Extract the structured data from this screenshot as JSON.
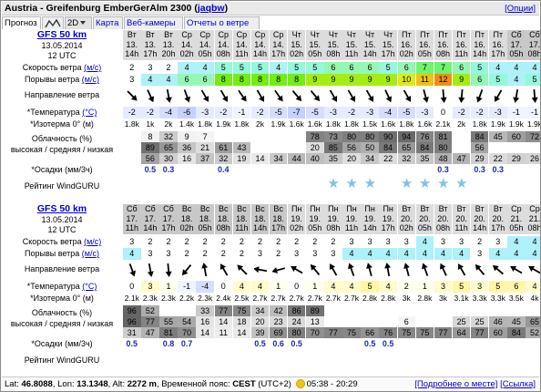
{
  "header": {
    "title": "Austria - Greifenburg EmberGerAlm 2300",
    "user": "jaqbw",
    "options": "[Опции]"
  },
  "tabs": [
    {
      "label": "Прогноз",
      "state": "active"
    },
    {
      "label": "2D",
      "state": "sel"
    },
    {
      "label": "Карта",
      "state": "link"
    },
    {
      "label": "Веб-камеры",
      "state": "link"
    },
    {
      "label": "Отчеты о ветре",
      "state": "link"
    }
  ],
  "labels": {
    "wind_speed": "Скорость ветра",
    "wind_gust": "Порывы ветра",
    "unit_ms": "(м/с)",
    "wind_dir": "Направление ветра",
    "temperature": "*Температура",
    "unit_c": "(°C)",
    "isotherm": "*Изотерма 0° (м)",
    "clouds": "Облачность (%)",
    "clouds_levels": "высокая / средняя / низкая",
    "precip": "*Осадки (мм/3ч)",
    "rating": "Рейтинг WindGURU"
  },
  "colors": {
    "header_bg": "#e9e9e9",
    "day_bg": "#d2d2d2",
    "link": "#0000cc",
    "star": "#7ec4e6"
  },
  "forecasts": [
    {
      "model": "GFS 50 km",
      "date": "13.05.2014",
      "run": "12 UTC",
      "cols": [
        {
          "day": "Вт",
          "dd": "13.",
          "hh": "14h",
          "ws": "2",
          "wg": "3",
          "dir": 135,
          "temp": "-2",
          "iso": "1.8k",
          "ch": "",
          "cm": "",
          "cl": "",
          "pr": "",
          "star": false
        },
        {
          "day": "Вт",
          "dd": "13.",
          "hh": "17h",
          "ws": "3",
          "wg": "4",
          "dir": 155,
          "temp": "-2",
          "iso": "1k",
          "ch": "8",
          "cm": "89",
          "cl": "56",
          "pr": "0.5",
          "star": false
        },
        {
          "day": "Вт",
          "dd": "13.",
          "hh": "20h",
          "ws": "2",
          "wg": "4",
          "dir": 170,
          "temp": "-4",
          "iso": "2k",
          "ch": "32",
          "cm": "65",
          "cl": "30",
          "pr": "0.3",
          "star": false
        },
        {
          "day": "Ср",
          "dd": "14.",
          "hh": "02h",
          "ws": "4",
          "wg": "6",
          "dir": 160,
          "temp": "-6",
          "iso": "1.4k",
          "ch": "9",
          "cm": "36",
          "cl": "16",
          "pr": "",
          "star": false
        },
        {
          "day": "Ср",
          "dd": "14.",
          "hh": "05h",
          "ws": "4",
          "wg": "6",
          "dir": 150,
          "temp": "-3",
          "iso": "1.8k",
          "ch": "7",
          "cm": "21",
          "cl": "37",
          "pr": "",
          "star": false
        },
        {
          "day": "Ср",
          "dd": "14.",
          "hh": "08h",
          "ws": "5",
          "wg": "8",
          "dir": 150,
          "temp": "-2",
          "iso": "1.9k",
          "ch": "",
          "cm": "61",
          "cl": "32",
          "pr": "0.4",
          "star": false
        },
        {
          "day": "Ср",
          "dd": "14.",
          "hh": "11h",
          "ws": "5",
          "wg": "8",
          "dir": 145,
          "temp": "-1",
          "iso": "1.8k",
          "ch": "",
          "cm": "43",
          "cl": "19",
          "pr": "",
          "star": false
        },
        {
          "day": "Ср",
          "dd": "14.",
          "hh": "14h",
          "ws": "5",
          "wg": "8",
          "dir": 150,
          "temp": "-2",
          "iso": "2k",
          "ch": "",
          "cm": "",
          "cl": "14",
          "pr": "",
          "star": false
        },
        {
          "day": "Ср",
          "dd": "14.",
          "hh": "17h",
          "ws": "4",
          "wg": "8",
          "dir": 145,
          "temp": "-5",
          "iso": "1.9k",
          "ch": "",
          "cm": "",
          "cl": "34",
          "pr": "",
          "star": false
        },
        {
          "day": "Чт",
          "dd": "15.",
          "hh": "02h",
          "ws": "5",
          "wg": "8",
          "dir": 140,
          "temp": "-7",
          "iso": "1.6k",
          "ch": "",
          "cm": "",
          "cl": "44",
          "pr": "",
          "star": false
        },
        {
          "day": "Чт",
          "dd": "15.",
          "hh": "05h",
          "ws": "5",
          "wg": "9",
          "dir": 140,
          "temp": "-5",
          "iso": "1.6k",
          "ch": "78",
          "cm": "20",
          "cl": "40",
          "pr": "",
          "star": false
        },
        {
          "day": "Чт",
          "dd": "15.",
          "hh": "08h",
          "ws": "6",
          "wg": "9",
          "dir": 150,
          "temp": "-3",
          "iso": "1.8k",
          "ch": "73",
          "cm": "85",
          "cl": "35",
          "pr": "",
          "star": true
        },
        {
          "day": "Чт",
          "dd": "15.",
          "hh": "11h",
          "ws": "6",
          "wg": "9",
          "dir": 150,
          "temp": "-2",
          "iso": "1.8k",
          "ch": "80",
          "cm": "56",
          "cl": "20",
          "pr": "",
          "star": true
        },
        {
          "day": "Чт",
          "dd": "15.",
          "hh": "14h",
          "ws": "6",
          "wg": "9",
          "dir": 150,
          "temp": "-3",
          "iso": "1.5k",
          "ch": "80",
          "cm": "50",
          "cl": "34",
          "pr": "",
          "star": true
        },
        {
          "day": "Чт",
          "dd": "15.",
          "hh": "17h",
          "ws": "5",
          "wg": "9",
          "dir": 155,
          "temp": "-4",
          "iso": "1.6k",
          "ch": "90",
          "cm": "84",
          "cl": "22",
          "pr": "",
          "star": false
        },
        {
          "day": "Пт",
          "dd": "16.",
          "hh": "02h",
          "ws": "6",
          "wg": "10",
          "dir": 150,
          "temp": "-5",
          "iso": "1.8k",
          "ch": "94",
          "cm": "65",
          "cl": "32",
          "pr": "",
          "star": true
        },
        {
          "day": "Пт",
          "dd": "16.",
          "hh": "05h",
          "ws": "7",
          "wg": "11",
          "dir": 165,
          "temp": "-3",
          "iso": "1.6k",
          "ch": "76",
          "cm": "84",
          "cl": "35",
          "pr": "",
          "star": true
        },
        {
          "day": "Пт",
          "dd": "16.",
          "hh": "08h",
          "ws": "7",
          "wg": "12",
          "dir": 175,
          "temp": "0",
          "iso": "2.1k",
          "ch": "81",
          "cm": "80",
          "cl": "48",
          "pr": "0.3",
          "star": true
        },
        {
          "day": "Пт",
          "dd": "16.",
          "hh": "11h",
          "ws": "6",
          "wg": "9",
          "dir": 185,
          "temp": "-2",
          "iso": "2k",
          "ch": "",
          "cm": "",
          "cl": "47",
          "pr": "",
          "star": true
        },
        {
          "day": "Пт",
          "dd": "16.",
          "hh": "14h",
          "ws": "5",
          "wg": "6",
          "dir": 200,
          "temp": "-2",
          "iso": "1.8k",
          "ch": "84",
          "cm": "56",
          "cl": "29",
          "pr": "0.3",
          "star": false
        },
        {
          "day": "Пт",
          "dd": "16.",
          "hh": "17h",
          "ws": "4",
          "wg": "5",
          "dir": 210,
          "temp": "-3",
          "iso": "1.9k",
          "ch": "45",
          "cm": "",
          "cl": "22",
          "pr": "0.3",
          "star": false
        },
        {
          "day": "Сб",
          "dd": "17.",
          "hh": "05h",
          "ws": "4",
          "wg": "4",
          "dir": 190,
          "temp": "-1",
          "iso": "1.9k",
          "ch": "60",
          "cm": "",
          "cl": "29",
          "pr": "",
          "star": false
        },
        {
          "day": "Сб",
          "dd": "17.",
          "hh": "08h",
          "ws": "4",
          "wg": "5",
          "dir": 175,
          "temp": "-1",
          "iso": "1.9k",
          "ch": "72",
          "cm": "",
          "cl": "26",
          "pr": "",
          "star": false
        }
      ]
    },
    {
      "model": "GFS 50 km",
      "date": "13.05.2014",
      "run": "12 UTC",
      "cols": [
        {
          "day": "Сб",
          "dd": "17.",
          "hh": "11h",
          "ws": "3",
          "wg": "4",
          "dir": 160,
          "temp": "0",
          "iso": "2.1k",
          "ch": "96",
          "cm": "96",
          "cl": "31",
          "pr": "0.5",
          "star": false
        },
        {
          "day": "Сб",
          "dd": "17.",
          "hh": "14h",
          "ws": "2",
          "wg": "3",
          "dir": 170,
          "temp": "3",
          "iso": "2.3k",
          "ch": "52",
          "cm": "77",
          "cl": "47",
          "pr": "",
          "star": false
        },
        {
          "day": "Сб",
          "dd": "17.",
          "hh": "17h",
          "ws": "2",
          "wg": "3",
          "dir": 175,
          "temp": "1",
          "iso": "2.3k",
          "ch": "",
          "cm": "55",
          "cl": "81",
          "pr": "0.8",
          "star": false
        },
        {
          "day": "Вс",
          "dd": "18.",
          "hh": "02h",
          "ws": "2",
          "wg": "2",
          "dir": 220,
          "temp": "-1",
          "iso": "2.2k",
          "ch": "",
          "cm": "54",
          "cl": "70",
          "pr": "0.7",
          "star": false
        },
        {
          "day": "Вс",
          "dd": "18.",
          "hh": "05h",
          "ws": "2",
          "wg": "2",
          "dir": 350,
          "temp": "-4",
          "iso": "2.3k",
          "ch": "33",
          "cm": "16",
          "cl": "14",
          "pr": "",
          "star": false
        },
        {
          "day": "Вс",
          "dd": "18.",
          "hh": "08h",
          "ws": "2",
          "wg": "2",
          "dir": 330,
          "temp": "0",
          "iso": "2.4k",
          "ch": "77",
          "cm": "14",
          "cl": "11",
          "pr": "",
          "star": false
        },
        {
          "day": "Вс",
          "dd": "18.",
          "hh": "11h",
          "ws": "2",
          "wg": "2",
          "dir": 315,
          "temp": "4",
          "iso": "2.5k",
          "ch": "75",
          "cm": "18",
          "cl": "14",
          "pr": "",
          "star": false
        },
        {
          "day": "Вс",
          "dd": "18.",
          "hh": "14h",
          "ws": "2",
          "wg": "3",
          "dir": 280,
          "temp": "4",
          "iso": "2.7k",
          "ch": "34",
          "cm": "20",
          "cl": "39",
          "pr": "0.5",
          "star": false
        },
        {
          "day": "Вс",
          "dd": "18.",
          "hh": "17h",
          "ws": "2",
          "wg": "2",
          "dir": 255,
          "temp": "1",
          "iso": "2.7k",
          "ch": "42",
          "cm": "23",
          "cl": "69",
          "pr": "0.6",
          "star": false
        },
        {
          "day": "Пн",
          "dd": "19.",
          "hh": "02h",
          "ws": "2",
          "wg": "3",
          "dir": 300,
          "temp": "0",
          "iso": "2.7k",
          "ch": "86",
          "cm": "24",
          "cl": "80",
          "pr": "0.5",
          "star": false
        },
        {
          "day": "Пн",
          "dd": "19.",
          "hh": "05h",
          "ws": "2",
          "wg": "3",
          "dir": 320,
          "temp": "1",
          "iso": "2.7k",
          "ch": "89",
          "cm": "13",
          "cl": "70",
          "pr": "",
          "star": false
        },
        {
          "day": "Пн",
          "dd": "19.",
          "hh": "08h",
          "ws": "2",
          "wg": "3",
          "dir": 330,
          "temp": "4",
          "iso": "2.7k",
          "ch": "",
          "cm": "",
          "cl": "77",
          "pr": "",
          "star": false
        },
        {
          "day": "Пн",
          "dd": "19.",
          "hh": "11h",
          "ws": "3",
          "wg": "4",
          "dir": 340,
          "temp": "4",
          "iso": "2.7k",
          "ch": "",
          "cm": "",
          "cl": "75",
          "pr": "",
          "star": false
        },
        {
          "day": "Пн",
          "dd": "19.",
          "hh": "14h",
          "ws": "3",
          "wg": "4",
          "dir": 345,
          "temp": "5",
          "iso": "2.8k",
          "ch": "",
          "cm": "",
          "cl": "66",
          "pr": "0.5",
          "star": false
        },
        {
          "day": "Пн",
          "dd": "19.",
          "hh": "17h",
          "ws": "3",
          "wg": "4",
          "dir": 350,
          "temp": "4",
          "iso": "2.8k",
          "ch": "",
          "cm": "",
          "cl": "76",
          "pr": "0.5",
          "star": false
        },
        {
          "day": "Вт",
          "dd": "20.",
          "hh": "02h",
          "ws": "3",
          "wg": "4",
          "dir": 345,
          "temp": "2",
          "iso": "3k",
          "ch": "",
          "cm": "6",
          "cl": "75",
          "pr": "",
          "star": false
        },
        {
          "day": "Вт",
          "dd": "20.",
          "hh": "05h",
          "ws": "4",
          "wg": "4",
          "dir": 340,
          "temp": "1",
          "iso": "2.8k",
          "ch": "",
          "cm": "",
          "cl": "75",
          "pr": "",
          "star": false
        },
        {
          "day": "Вт",
          "dd": "20.",
          "hh": "08h",
          "ws": "3",
          "wg": "4",
          "dir": 335,
          "temp": "3",
          "iso": "3k",
          "ch": "",
          "cm": "",
          "cl": "77",
          "pr": "",
          "star": false
        },
        {
          "day": "Вт",
          "dd": "20.",
          "hh": "11h",
          "ws": "3",
          "wg": "4",
          "dir": 330,
          "temp": "5",
          "iso": "3.1k",
          "ch": "",
          "cm": "25",
          "cl": "64",
          "pr": "",
          "star": false
        },
        {
          "day": "Вт",
          "dd": "20.",
          "hh": "14h",
          "ws": "2",
          "wg": "3",
          "dir": 320,
          "temp": "3",
          "iso": "3.3k",
          "ch": "",
          "cm": "25",
          "cl": "77",
          "pr": "",
          "star": false
        },
        {
          "day": "Вт",
          "dd": "20.",
          "hh": "17h",
          "ws": "3",
          "wg": "4",
          "dir": 310,
          "temp": "5",
          "iso": "3.3k",
          "ch": "",
          "cm": "46",
          "cl": "60",
          "pr": "",
          "star": false
        },
        {
          "day": "Ср",
          "dd": "21.",
          "hh": "05h",
          "ws": "4",
          "wg": "4",
          "dir": 300,
          "temp": "6",
          "iso": "3.5k",
          "ch": "",
          "cm": "45",
          "cl": "84",
          "pr": "",
          "star": false
        },
        {
          "day": "Ср",
          "dd": "21.",
          "hh": "08h",
          "ws": "4",
          "wg": "4",
          "dir": 300,
          "temp": "4",
          "iso": "4k",
          "ch": "",
          "cm": "65",
          "cl": "52",
          "pr": "",
          "star": false
        }
      ]
    }
  ],
  "footer": {
    "lat_label": "Lat:",
    "lat": "46.8088",
    "lon_label": ", Lon:",
    "lon": "13.1348",
    "alt_label": ", Alt:",
    "alt": "2272 m",
    "tz_label": ", Временной пояс:",
    "tz": "CEST",
    "tz_offset": "(UTC+2)",
    "sun": "05:38 - 20:29",
    "link_place": "[Подробнее о месте]",
    "link_link": "[Ссылка]"
  }
}
